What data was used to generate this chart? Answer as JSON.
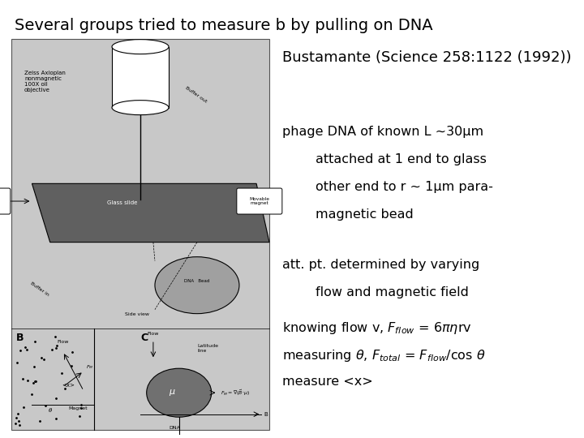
{
  "title": "Several groups tried to measure b by pulling on DNA",
  "title_fontsize": 14,
  "subtitle": "Bustamante (Science 258:1122 (1992))",
  "subtitle_fontsize": 13,
  "text_block1_lines": [
    "phage DNA of known L ~30μm",
    "        attached at 1 end to glass",
    "        other end to r ~ 1μm para-",
    "        magnetic bead"
  ],
  "text_block1_fontsize": 11.5,
  "text_block2_line1": "att. pt. determined by varying",
  "text_block2_line2": "        flow and magnetic field",
  "text_block2_fontsize": 11.5,
  "background_color": "#ffffff",
  "text_color": "#000000",
  "img_bg_color": "#c8c8c8",
  "slide_color": "#909090"
}
